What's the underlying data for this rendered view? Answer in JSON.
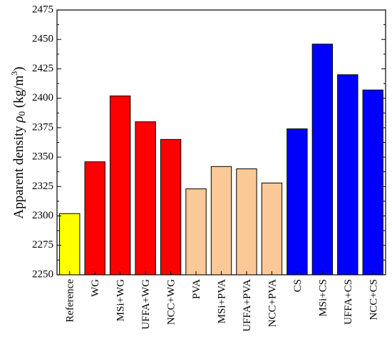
{
  "chart_data": {
    "type": "bar",
    "ylabel": "Apparent density ρ₀ (kg/m³)",
    "ylabel_parts": {
      "prefix": "Apparent density ",
      "symbol": "ρ",
      "subscript": "0",
      "unit_open": " (kg/m",
      "superscript": "3",
      "unit_close": ")"
    },
    "ylim": [
      2250,
      2475
    ],
    "yticks": [
      2250,
      2275,
      2300,
      2325,
      2350,
      2375,
      2400,
      2425,
      2450,
      2475
    ],
    "categories": [
      "Reference",
      "WG",
      "MSi+WG",
      "UFFA+WG",
      "NCC+WG",
      "PVA",
      "MSi+PVA",
      "UFFA+PVA",
      "NCC+PVA",
      "CS",
      "MSi+CS",
      "UFFA+CS",
      "NCC+CS"
    ],
    "values": [
      2302,
      2346,
      2402,
      2380,
      2365,
      2323,
      2342,
      2340,
      2328,
      2374,
      2446,
      2420,
      2407
    ],
    "colors": [
      "#ffff00",
      "#ff0000",
      "#ff0000",
      "#ff0000",
      "#ff0000",
      "#fbc997",
      "#fbc997",
      "#fbc997",
      "#fbc997",
      "#0000ff",
      "#0000ff",
      "#0000ff",
      "#0000ff"
    ],
    "grid": false,
    "legend": "none"
  }
}
